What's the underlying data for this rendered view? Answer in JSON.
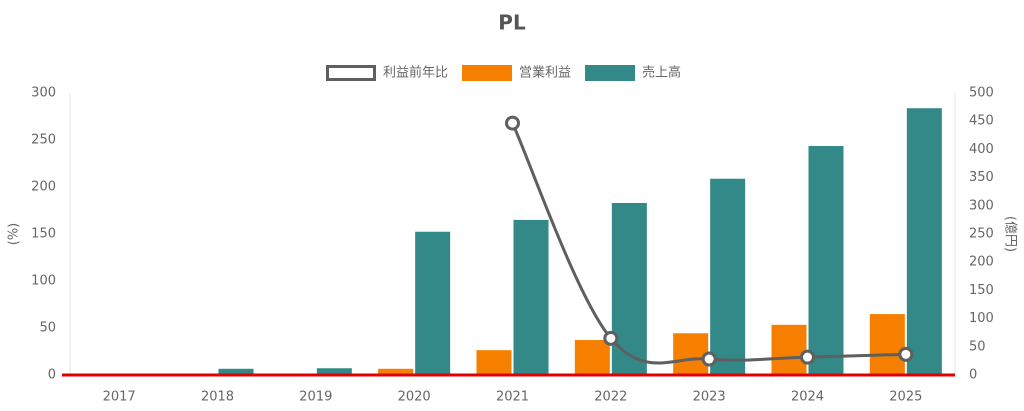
{
  "chart_data": {
    "type": "bar-line",
    "title": "PL",
    "categories": [
      "2017",
      "2018",
      "2019",
      "2020",
      "2021",
      "2022",
      "2023",
      "2024",
      "2025"
    ],
    "series": [
      {
        "name": "利益前年比",
        "type": "line",
        "color": "#5f5f5f",
        "axis": "y",
        "values": [
          null,
          null,
          null,
          null,
          268,
          39,
          17,
          19,
          22
        ]
      },
      {
        "name": "営業利益",
        "type": "bar",
        "color": "#f77f00",
        "axis": "y2",
        "values": [
          0,
          0,
          0,
          11,
          44,
          62,
          74,
          89,
          108
        ]
      },
      {
        "name": "売上高",
        "type": "bar",
        "color": "#338888",
        "axis": "y2",
        "values": [
          0,
          11,
          12,
          254,
          275,
          305,
          348,
          406,
          473
        ]
      }
    ],
    "ylabel": "(%)",
    "y2label": "(億円)",
    "ylim": [
      0,
      300
    ],
    "yticks": [
      0,
      50,
      100,
      150,
      200,
      250,
      300
    ],
    "y2lim": [
      0,
      500
    ],
    "y2ticks": [
      0,
      50,
      100,
      150,
      200,
      250,
      300,
      350,
      400,
      450,
      500
    ],
    "baseline_color": "#e00000"
  }
}
